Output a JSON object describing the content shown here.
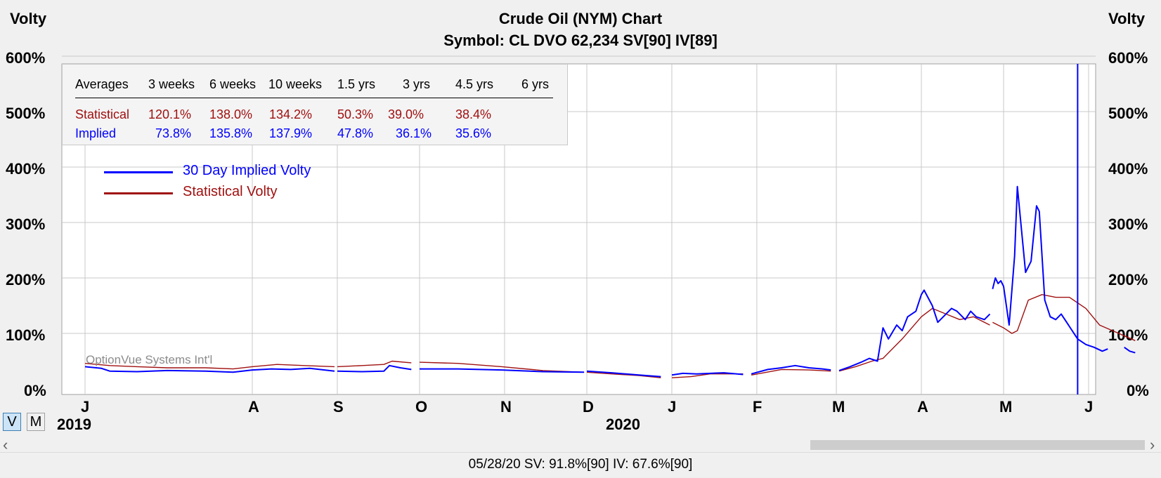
{
  "chart_data": {
    "type": "line",
    "title": "Crude Oil (NYM) Chart",
    "subtitle": "Symbol: CL  DVO 62,234  SV[90]  IV[89]",
    "ylabel_left": "Volty",
    "ylabel_right": "Volty",
    "ylim": [
      0,
      600
    ],
    "y_ticks": [
      "0%",
      "100%",
      "200%",
      "300%",
      "400%",
      "500%",
      "600%"
    ],
    "x_range": [
      "2019-06-01",
      "2020-06-10"
    ],
    "month_labels": [
      {
        "label": "J",
        "date": "2019-06-01"
      },
      {
        "label": "A",
        "date": "2019-08-01"
      },
      {
        "label": "S",
        "date": "2019-09-01"
      },
      {
        "label": "O",
        "date": "2019-10-01"
      },
      {
        "label": "N",
        "date": "2019-11-01"
      },
      {
        "label": "D",
        "date": "2019-12-01"
      },
      {
        "label": "J",
        "date": "2020-01-01"
      },
      {
        "label": "F",
        "date": "2020-02-01"
      },
      {
        "label": "M",
        "date": "2020-03-01"
      },
      {
        "label": "A",
        "date": "2020-04-01"
      },
      {
        "label": "M",
        "date": "2020-05-01"
      },
      {
        "label": "J",
        "date": "2020-06-01"
      }
    ],
    "year_labels": [
      {
        "label": "2019",
        "date": "2019-06-01"
      },
      {
        "label": "2020",
        "date": "2020-01-01"
      }
    ],
    "grid": true,
    "cursor_date": "2020-05-28",
    "series": [
      {
        "name": "30 Day Implied Volty",
        "color": "#0000ff",
        "segments": [
          [
            [
              "2019-06-01",
              40
            ],
            [
              "2019-06-07",
              37
            ],
            [
              "2019-06-10",
              32
            ],
            [
              "2019-06-20",
              31
            ],
            [
              "2019-07-01",
              33
            ],
            [
              "2019-07-15",
              32
            ],
            [
              "2019-07-25",
              30
            ],
            [
              "2019-08-01",
              34
            ],
            [
              "2019-08-08",
              36
            ],
            [
              "2019-08-15",
              35
            ],
            [
              "2019-08-22",
              37
            ],
            [
              "2019-08-31",
              32
            ]
          ],
          [
            [
              "2019-09-01",
              32
            ],
            [
              "2019-09-10",
              31
            ],
            [
              "2019-09-18",
              32
            ],
            [
              "2019-09-20",
              42
            ],
            [
              "2019-09-24",
              38
            ],
            [
              "2019-09-28",
              35
            ]
          ],
          [
            [
              "2019-10-01",
              36
            ],
            [
              "2019-10-15",
              36
            ],
            [
              "2019-10-31",
              34
            ],
            [
              "2019-11-15",
              31
            ],
            [
              "2019-11-30",
              30
            ]
          ],
          [
            [
              "2019-12-01",
              32
            ],
            [
              "2019-12-10",
              29
            ],
            [
              "2019-12-20",
              25
            ],
            [
              "2019-12-28",
              22
            ]
          ],
          [
            [
              "2020-01-01",
              25
            ],
            [
              "2020-01-05",
              28
            ],
            [
              "2020-01-10",
              27
            ],
            [
              "2020-01-20",
              29
            ],
            [
              "2020-01-27",
              26
            ]
          ],
          [
            [
              "2020-01-30",
              27
            ],
            [
              "2020-02-05",
              35
            ],
            [
              "2020-02-10",
              38
            ],
            [
              "2020-02-15",
              42
            ],
            [
              "2020-02-20",
              38
            ],
            [
              "2020-02-25",
              36
            ],
            [
              "2020-02-28",
              34
            ]
          ],
          [
            [
              "2020-03-02",
              33
            ],
            [
              "2020-03-06",
              40
            ],
            [
              "2020-03-10",
              48
            ],
            [
              "2020-03-13",
              55
            ],
            [
              "2020-03-16",
              50
            ],
            [
              "2020-03-18",
              110
            ],
            [
              "2020-03-20",
              90
            ],
            [
              "2020-03-23",
              115
            ],
            [
              "2020-03-25",
              105
            ],
            [
              "2020-03-27",
              130
            ],
            [
              "2020-03-30",
              140
            ],
            [
              "2020-04-01",
              170
            ],
            [
              "2020-04-02",
              178
            ],
            [
              "2020-04-05",
              150
            ],
            [
              "2020-04-07",
              120
            ],
            [
              "2020-04-09",
              130
            ],
            [
              "2020-04-12",
              145
            ],
            [
              "2020-04-14",
              140
            ],
            [
              "2020-04-17",
              125
            ],
            [
              "2020-04-19",
              140
            ],
            [
              "2020-04-21",
              130
            ],
            [
              "2020-04-24",
              125
            ],
            [
              "2020-04-26",
              135
            ]
          ],
          [
            [
              "2020-04-27",
              180
            ],
            [
              "2020-04-28",
              200
            ],
            [
              "2020-04-29",
              190
            ],
            [
              "2020-04-30",
              195
            ],
            [
              "2020-05-01",
              185
            ],
            [
              "2020-05-03",
              115
            ],
            [
              "2020-05-05",
              240
            ],
            [
              "2020-05-06",
              365
            ],
            [
              "2020-05-09",
              210
            ],
            [
              "2020-05-11",
              230
            ],
            [
              "2020-05-13",
              330
            ],
            [
              "2020-05-14",
              320
            ],
            [
              "2020-05-16",
              160
            ],
            [
              "2020-05-18",
              130
            ],
            [
              "2020-05-20",
              125
            ],
            [
              "2020-05-22",
              135
            ],
            [
              "2020-05-24",
              120
            ],
            [
              "2020-05-26",
              105
            ],
            [
              "2020-05-28",
              90
            ],
            [
              "2020-05-31",
              80
            ],
            [
              "2020-06-03",
              75
            ],
            [
              "2020-06-06",
              68
            ],
            [
              "2020-06-08",
              72
            ]
          ],
          [
            [
              "2020-06-14",
              75
            ],
            [
              "2020-06-16",
              68
            ],
            [
              "2020-06-18",
              65
            ]
          ]
        ]
      },
      {
        "name": "Statistical Volty",
        "color": "#a01010",
        "segments": [
          [
            [
              "2019-06-01",
              46
            ],
            [
              "2019-06-10",
              42
            ],
            [
              "2019-06-20",
              40
            ],
            [
              "2019-07-01",
              38
            ],
            [
              "2019-07-15",
              38
            ],
            [
              "2019-07-25",
              36
            ],
            [
              "2019-08-01",
              40
            ],
            [
              "2019-08-10",
              44
            ],
            [
              "2019-08-20",
              42
            ],
            [
              "2019-08-31",
              40
            ]
          ],
          [
            [
              "2019-09-01",
              40
            ],
            [
              "2019-09-10",
              42
            ],
            [
              "2019-09-18",
              44
            ],
            [
              "2019-09-21",
              50
            ],
            [
              "2019-09-28",
              47
            ]
          ],
          [
            [
              "2019-10-01",
              48
            ],
            [
              "2019-10-15",
              46
            ],
            [
              "2019-10-31",
              40
            ],
            [
              "2019-11-15",
              33
            ],
            [
              "2019-11-30",
              30
            ]
          ],
          [
            [
              "2019-12-01",
              30
            ],
            [
              "2019-12-10",
              27
            ],
            [
              "2019-12-20",
              24
            ],
            [
              "2019-12-28",
              20
            ]
          ],
          [
            [
              "2020-01-01",
              20
            ],
            [
              "2020-01-08",
              22
            ],
            [
              "2020-01-15",
              27
            ],
            [
              "2020-01-27",
              27
            ]
          ],
          [
            [
              "2020-01-30",
              25
            ],
            [
              "2020-02-10",
              35
            ],
            [
              "2020-02-20",
              34
            ],
            [
              "2020-02-28",
              32
            ]
          ],
          [
            [
              "2020-03-02",
              32
            ],
            [
              "2020-03-08",
              40
            ],
            [
              "2020-03-14",
              50
            ],
            [
              "2020-03-18",
              55
            ],
            [
              "2020-03-25",
              90
            ],
            [
              "2020-04-01",
              130
            ],
            [
              "2020-04-05",
              145
            ],
            [
              "2020-04-10",
              135
            ],
            [
              "2020-04-15",
              125
            ],
            [
              "2020-04-20",
              130
            ],
            [
              "2020-04-26",
              115
            ]
          ],
          [
            [
              "2020-04-27",
              120
            ],
            [
              "2020-05-01",
              110
            ],
            [
              "2020-05-04",
              100
            ],
            [
              "2020-05-06",
              105
            ],
            [
              "2020-05-10",
              160
            ],
            [
              "2020-05-15",
              170
            ],
            [
              "2020-05-20",
              165
            ],
            [
              "2020-05-25",
              165
            ],
            [
              "2020-05-31",
              145
            ],
            [
              "2020-06-05",
              115
            ],
            [
              "2020-06-12",
              100
            ],
            [
              "2020-06-18",
              87
            ]
          ]
        ]
      }
    ],
    "averages_table": {
      "headers": [
        "Averages",
        "3 weeks",
        "6 weeks",
        "10 weeks",
        "1.5 yrs",
        "3 yrs",
        "4.5 yrs",
        "6 yrs"
      ],
      "rows": [
        {
          "label": "Statistical",
          "color": "#a01010",
          "values": [
            "120.1%",
            "138.0%",
            "134.2%",
            "50.3%",
            "39.0%",
            "38.4%",
            ""
          ]
        },
        {
          "label": "Implied",
          "color": "#0000ff",
          "values": [
            "73.8%",
            "135.8%",
            "137.9%",
            "47.8%",
            "36.1%",
            "35.6%",
            ""
          ]
        }
      ]
    },
    "legend": [
      {
        "label": "30 Day Implied Volty",
        "color": "#0000ff"
      },
      {
        "label": "Statistical Volty",
        "color": "#a01010"
      }
    ]
  },
  "watermark": "OptionVue Systems Int'l",
  "view_buttons": [
    {
      "label": "V",
      "active": true
    },
    {
      "label": "M",
      "active": false
    }
  ],
  "scroll_left_arrow": "‹",
  "scroll_right_arrow": "›",
  "status": "05/28/20   SV: 91.8%[90]   IV: 67.6%[90]"
}
